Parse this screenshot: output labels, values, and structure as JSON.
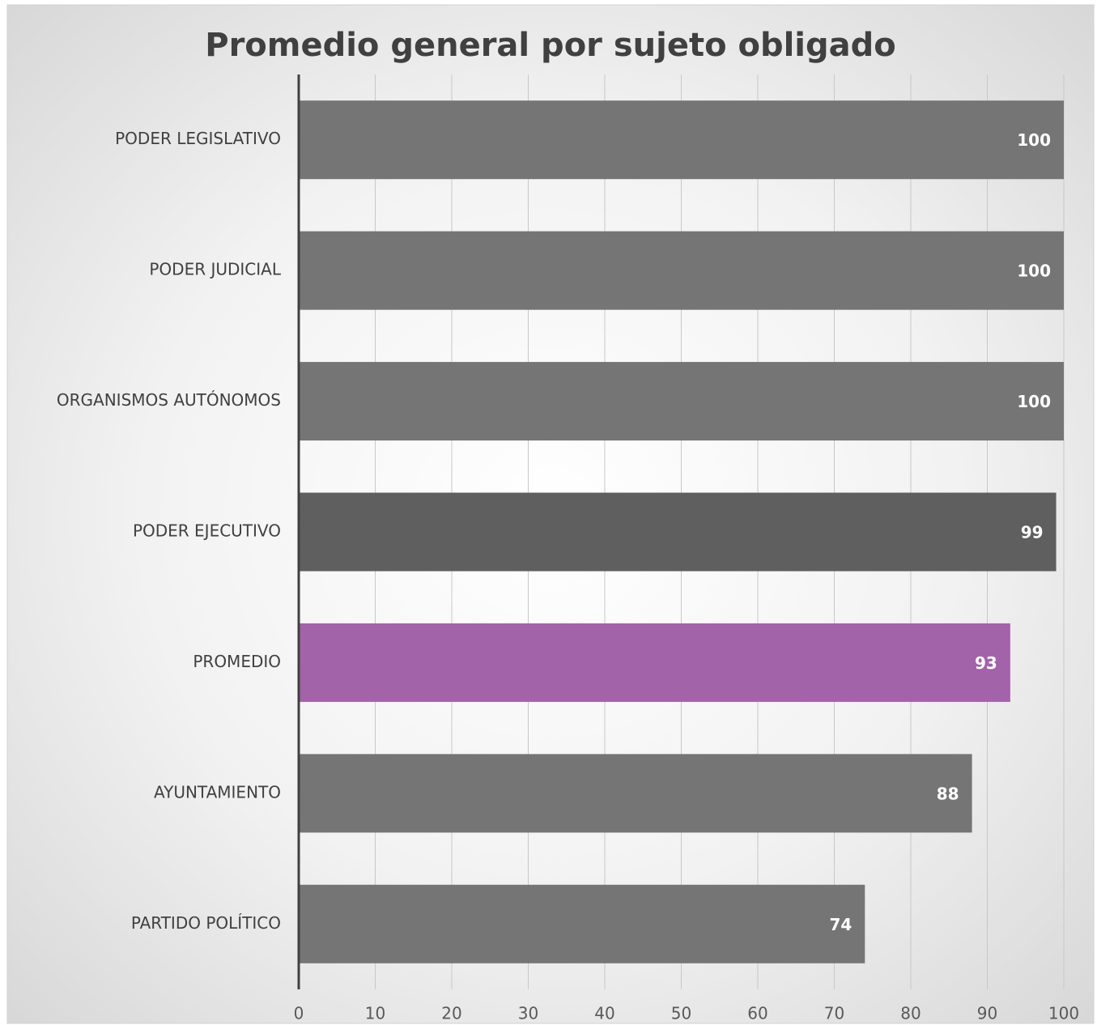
{
  "chart_data": {
    "type": "bar",
    "orientation": "horizontal",
    "title": "Promedio general por sujeto obligado",
    "categories": [
      "PODER LEGISLATIVO",
      "PODER JUDICIAL",
      "ORGANISMOS AUTÓNOMOS",
      "PODER EJECUTIVO",
      "PROMEDIO",
      "AYUNTAMIENTO",
      "PARTIDO POLÍTICO"
    ],
    "values": [
      100,
      100,
      100,
      99,
      93,
      88,
      74
    ],
    "colors": [
      "#757575",
      "#757575",
      "#757575",
      "#5f5f5f",
      "#a263a9",
      "#757575",
      "#757575"
    ],
    "xlim": [
      0,
      100
    ],
    "xticks": [
      0,
      10,
      20,
      30,
      40,
      50,
      60,
      70,
      80,
      90,
      100
    ],
    "grid": true
  }
}
